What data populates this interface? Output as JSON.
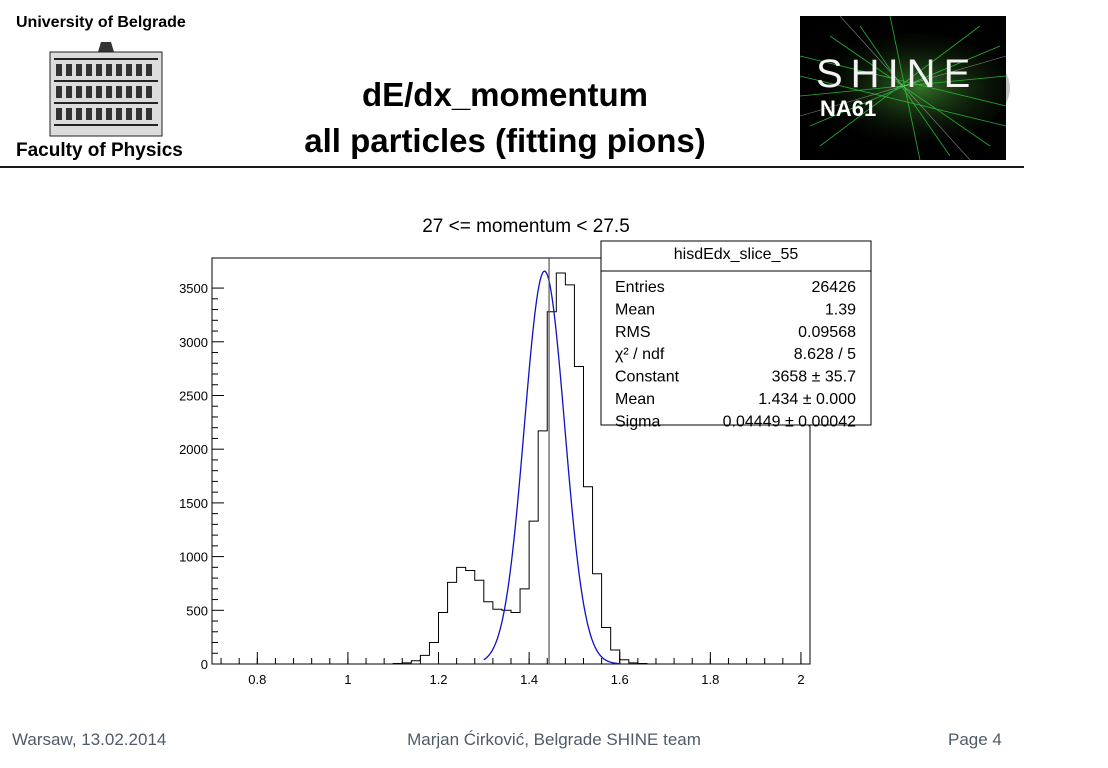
{
  "header": {
    "university": "University of Belgrade",
    "faculty": "Faculty of Physics",
    "title_line1": "dE/dx_momentum",
    "title_line2": "all particles (fitting pions)",
    "logo_shine": "SHINE",
    "logo_na61": "NA61"
  },
  "footer": {
    "location_date": "Warsaw, 13.02.2014",
    "author": "Marjan Ćirković, Belgrade SHINE team",
    "page": "Page 4"
  },
  "colors": {
    "fit_line": "#1010c8",
    "histogram_line": "#000000",
    "logo_background": "#000000",
    "logo_tracks": "#2ecc40"
  },
  "chart_data": {
    "type": "line",
    "title": "27 <= momentum < 27.5",
    "xlabel": "",
    "ylabel": "",
    "xlim": [
      0.7,
      2.02
    ],
    "ylim": [
      0,
      3780
    ],
    "x_ticks": [
      0.8,
      1,
      1.2,
      1.4,
      1.6,
      1.8,
      2
    ],
    "y_ticks": [
      0,
      500,
      1000,
      1500,
      2000,
      2500,
      3000,
      3500
    ],
    "marker_x": 1.444,
    "bin_width": 0.02,
    "histogram": {
      "bin_edges_start": 1.1,
      "values": [
        5,
        10,
        30,
        80,
        200,
        480,
        760,
        900,
        870,
        780,
        580,
        510,
        500,
        480,
        700,
        1330,
        2170,
        3280,
        3640,
        3530,
        2770,
        1650,
        840,
        340,
        130,
        40,
        10,
        5
      ]
    },
    "fit": {
      "function": "gaus",
      "constant": 3658,
      "mean": 1.434,
      "sigma": 0.04449,
      "x_range": [
        1.3,
        1.6
      ]
    },
    "stats_box": {
      "name": "hisdEdx_slice_55",
      "rows": [
        {
          "label": "Entries",
          "value": "26426"
        },
        {
          "label": "Mean",
          "value": "1.39"
        },
        {
          "label": "RMS",
          "value": "0.09568"
        },
        {
          "label": "χ² / ndf",
          "value": "8.628 / 5"
        },
        {
          "label": "Constant",
          "value": "3658 ± 35.7"
        },
        {
          "label": "Mean",
          "value": "1.434 ± 0.000"
        },
        {
          "label": "Sigma",
          "value": "0.04449 ± 0.00042"
        }
      ]
    }
  }
}
